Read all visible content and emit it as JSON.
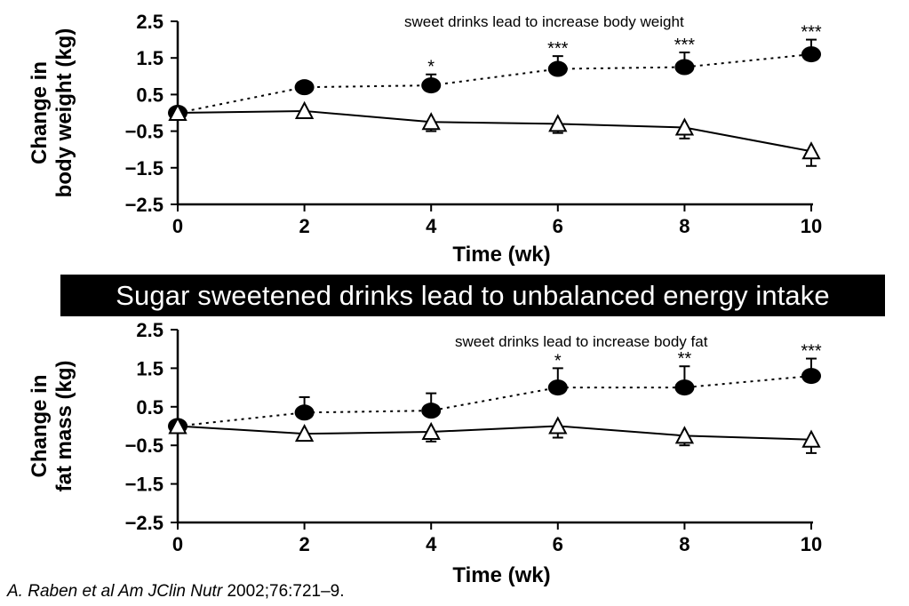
{
  "banner": "Sugar sweetened drinks lead to unbalanced energy intake",
  "citation": {
    "italic": "A. Raben et al Am JClin Nutr",
    "rest": " 2002;76:721–9."
  },
  "chart_data": [
    {
      "type": "line",
      "annotation": "sweet drinks lead to increase body weight",
      "ylabel_line1": "Change in",
      "ylabel_line2": "body weight (kg)",
      "xlabel": "Time (wk)",
      "x": [
        0,
        2,
        4,
        6,
        8,
        10
      ],
      "ylim": [
        -2.5,
        2.5
      ],
      "yticks": [
        "2.5",
        "1.5",
        "0.5",
        "−0.5",
        "−1.5",
        "−2.5"
      ],
      "xticks": [
        "0",
        "2",
        "4",
        "6",
        "8",
        "10"
      ],
      "series": [
        {
          "marker": "filled-circle",
          "style": "dotted",
          "values": [
            0.0,
            0.7,
            0.75,
            1.2,
            1.25,
            1.6
          ],
          "error": [
            0,
            0,
            0.3,
            0.35,
            0.4,
            0.4
          ],
          "significance": [
            "",
            "",
            "*",
            "***",
            "***",
            "***"
          ]
        },
        {
          "marker": "open-triangle",
          "style": "solid",
          "values": [
            0.0,
            0.05,
            -0.25,
            -0.3,
            -0.4,
            -1.05
          ],
          "error": [
            0,
            0,
            0.25,
            0.25,
            0.3,
            0.4
          ],
          "significance": [
            "",
            "",
            "",
            "",
            "",
            ""
          ]
        }
      ]
    },
    {
      "type": "line",
      "annotation": "sweet drinks lead to increase body fat",
      "ylabel_line1": "Change in",
      "ylabel_line2": "fat mass (kg)",
      "xlabel": "Time (wk)",
      "x": [
        0,
        2,
        4,
        6,
        8,
        10
      ],
      "ylim": [
        -2.5,
        2.5
      ],
      "yticks": [
        "2.5",
        "1.5",
        "0.5",
        "−0.5",
        "−1.5",
        "−2.5"
      ],
      "xticks": [
        "0",
        "2",
        "4",
        "6",
        "8",
        "10"
      ],
      "series": [
        {
          "marker": "filled-circle",
          "style": "dotted",
          "values": [
            0.0,
            0.35,
            0.4,
            1.0,
            1.0,
            1.3
          ],
          "error": [
            0,
            0.4,
            0.45,
            0.5,
            0.55,
            0.45
          ],
          "significance": [
            "",
            "",
            "",
            "*",
            "**",
            "***"
          ]
        },
        {
          "marker": "open-triangle",
          "style": "solid",
          "values": [
            0.0,
            -0.2,
            -0.15,
            0.0,
            -0.25,
            -0.35
          ],
          "error": [
            0,
            0,
            0.25,
            0.3,
            0.25,
            0.35
          ],
          "significance": [
            "",
            "",
            "",
            "",
            "",
            ""
          ]
        }
      ]
    }
  ]
}
